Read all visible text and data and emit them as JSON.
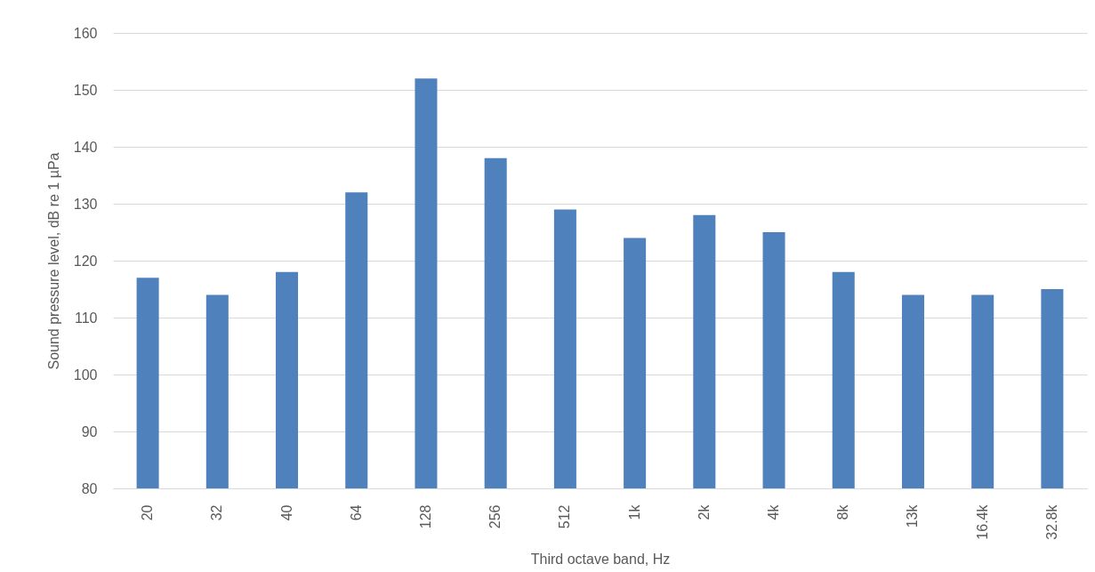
{
  "chart_data": {
    "type": "bar",
    "xlabel": "Third octave band, Hz",
    "ylabel": "Sound pressure level, dB re 1 µPa",
    "categories": [
      "20",
      "32",
      "40",
      "64",
      "128",
      "256",
      "512",
      "1k",
      "2k",
      "4k",
      "8k",
      "13k",
      "16.4k",
      "32.8k"
    ],
    "values": [
      117,
      114,
      118,
      132,
      152,
      138,
      129,
      124,
      128,
      125,
      118,
      114,
      114,
      115
    ],
    "color": "#4f81bd",
    "ylim": [
      80,
      160
    ],
    "yticks": [
      80,
      90,
      100,
      110,
      120,
      130,
      140,
      150,
      160
    ],
    "grid": "y"
  }
}
